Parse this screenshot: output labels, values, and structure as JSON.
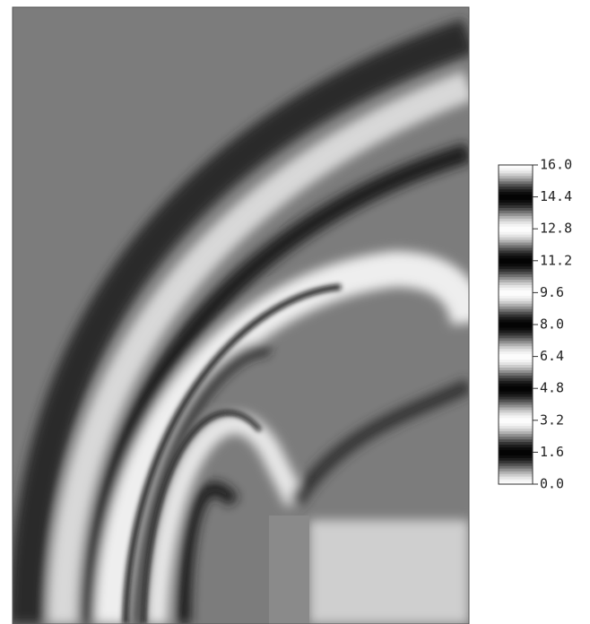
{
  "chart_data": {
    "type": "fringe-map",
    "clim": [
      0,
      16
    ],
    "cticks": [
      {
        "value": 0,
        "label": "0.0"
      },
      1.6,
      3.2,
      4.8,
      6.4,
      {
        "value": 8,
        "label": "8.0"
      },
      9.6,
      11.2,
      12.8,
      14.4,
      {
        "value": 16,
        "label": "16.0"
      }
    ]
  }
}
